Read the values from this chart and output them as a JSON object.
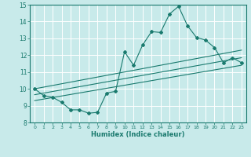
{
  "xlabel": "Humidex (Indice chaleur)",
  "ylabel": "",
  "bg_color": "#c8eaea",
  "grid_color": "#ffffff",
  "line_color": "#1a7a6e",
  "xlim": [
    -0.5,
    23.5
  ],
  "ylim": [
    8,
    15
  ],
  "xticks": [
    0,
    1,
    2,
    3,
    4,
    5,
    6,
    7,
    8,
    9,
    10,
    11,
    12,
    13,
    14,
    15,
    16,
    17,
    18,
    19,
    20,
    21,
    22,
    23
  ],
  "yticks": [
    8,
    9,
    10,
    11,
    12,
    13,
    14,
    15
  ],
  "main_x": [
    0,
    1,
    2,
    3,
    4,
    5,
    6,
    7,
    8,
    9,
    10,
    11,
    12,
    13,
    14,
    15,
    16,
    17,
    18,
    19,
    20,
    21,
    22,
    23
  ],
  "main_y": [
    10.0,
    9.6,
    9.5,
    9.2,
    8.75,
    8.75,
    8.55,
    8.6,
    9.75,
    9.85,
    12.2,
    11.4,
    12.6,
    13.4,
    13.35,
    14.45,
    14.9,
    13.75,
    13.05,
    12.9,
    12.45,
    11.55,
    11.85,
    11.55
  ],
  "line1_x": [
    0,
    23
  ],
  "line1_y": [
    10.0,
    12.3
  ],
  "line2_x": [
    0,
    23
  ],
  "line2_y": [
    9.65,
    11.85
  ],
  "line3_x": [
    0,
    23
  ],
  "line3_y": [
    9.3,
    11.4
  ]
}
